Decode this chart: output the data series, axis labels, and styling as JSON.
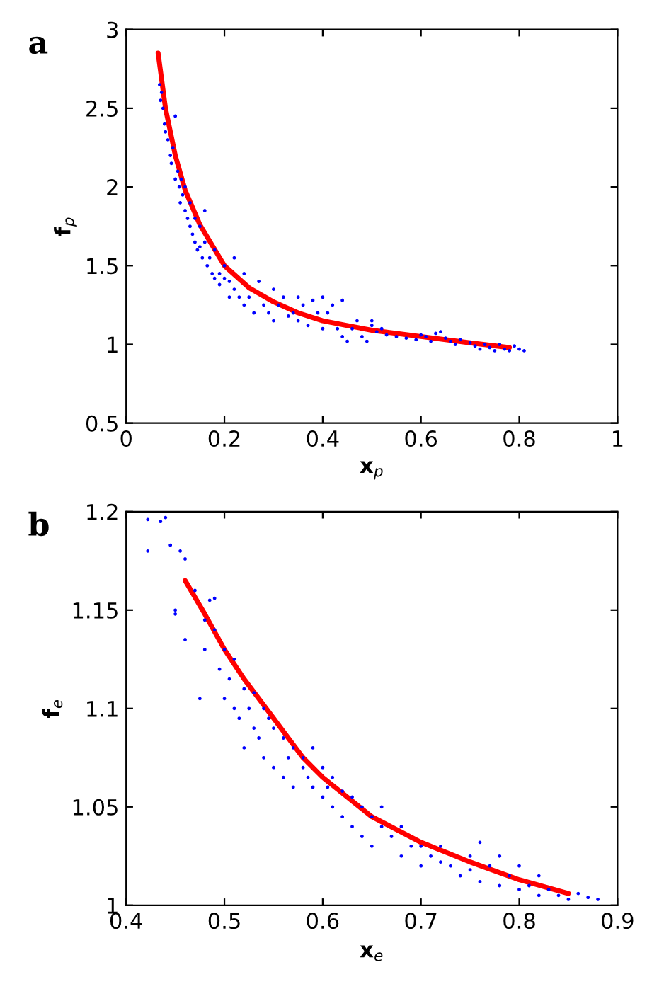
{
  "chart_data": [
    {
      "type": "scatter",
      "title": "a",
      "xlabel": "x$_{p}$",
      "ylabel": "f$_{p}$",
      "xlim": [
        0,
        1
      ],
      "ylim": [
        0.5,
        3
      ],
      "xticks": [
        0,
        0.2,
        0.4,
        0.6,
        0.8,
        1
      ],
      "yticks": [
        0.5,
        1,
        1.5,
        2,
        2.5,
        3
      ],
      "grid": false,
      "legend": false,
      "series": [
        {
          "color": "#0000ff",
          "marker": "circle",
          "x": [
            0.068,
            0.07,
            0.072,
            0.075,
            0.078,
            0.08,
            0.085,
            0.09,
            0.092,
            0.095,
            0.1,
            0.1,
            0.105,
            0.108,
            0.11,
            0.112,
            0.115,
            0.12,
            0.12,
            0.125,
            0.13,
            0.13,
            0.135,
            0.14,
            0.14,
            0.145,
            0.15,
            0.15,
            0.155,
            0.16,
            0.16,
            0.165,
            0.17,
            0.175,
            0.18,
            0.18,
            0.19,
            0.19,
            0.2,
            0.2,
            0.21,
            0.21,
            0.22,
            0.22,
            0.23,
            0.24,
            0.24,
            0.25,
            0.26,
            0.27,
            0.28,
            0.29,
            0.3,
            0.3,
            0.31,
            0.32,
            0.33,
            0.34,
            0.35,
            0.35,
            0.36,
            0.37,
            0.38,
            0.39,
            0.4,
            0.4,
            0.41,
            0.42,
            0.43,
            0.44,
            0.44,
            0.45,
            0.46,
            0.47,
            0.48,
            0.49,
            0.5,
            0.5,
            0.51,
            0.52,
            0.53,
            0.55,
            0.57,
            0.59,
            0.6,
            0.61,
            0.62,
            0.63,
            0.64,
            0.65,
            0.66,
            0.67,
            0.68,
            0.7,
            0.71,
            0.72,
            0.73,
            0.74,
            0.75,
            0.76,
            0.77,
            0.78,
            0.79,
            0.8,
            0.81
          ],
          "values": [
            2.65,
            2.55,
            2.6,
            2.5,
            2.4,
            2.35,
            2.3,
            2.2,
            2.15,
            2.25,
            2.05,
            2.45,
            2.1,
            2.0,
            1.9,
            2.05,
            1.95,
            1.85,
            2.0,
            1.8,
            1.75,
            1.9,
            1.7,
            1.8,
            1.65,
            1.6,
            1.75,
            1.62,
            1.55,
            1.85,
            1.65,
            1.5,
            1.55,
            1.45,
            1.42,
            1.6,
            1.45,
            1.38,
            1.5,
            1.42,
            1.4,
            1.3,
            1.35,
            1.55,
            1.3,
            1.25,
            1.45,
            1.3,
            1.2,
            1.4,
            1.25,
            1.2,
            1.15,
            1.35,
            1.25,
            1.3,
            1.18,
            1.2,
            1.3,
            1.15,
            1.25,
            1.12,
            1.28,
            1.2,
            1.1,
            1.3,
            1.2,
            1.25,
            1.1,
            1.05,
            1.28,
            1.02,
            1.1,
            1.15,
            1.05,
            1.02,
            1.12,
            1.15,
            1.08,
            1.1,
            1.06,
            1.05,
            1.04,
            1.03,
            1.06,
            1.05,
            1.02,
            1.07,
            1.08,
            1.04,
            1.02,
            1.0,
            1.03,
            1.01,
            0.99,
            0.97,
            1.0,
            0.98,
            0.96,
            1.0,
            0.97,
            0.96,
            0.99,
            0.97,
            0.96
          ]
        },
        {
          "type": "line",
          "color": "#ff0000",
          "marker": "none",
          "line_style": "solid",
          "x": [
            0.065,
            0.08,
            0.1,
            0.12,
            0.15,
            0.2,
            0.25,
            0.3,
            0.35,
            0.4,
            0.45,
            0.5,
            0.6,
            0.7,
            0.78
          ],
          "values": [
            2.85,
            2.5,
            2.2,
            1.98,
            1.76,
            1.5,
            1.36,
            1.27,
            1.2,
            1.15,
            1.12,
            1.09,
            1.05,
            1.01,
            0.98
          ]
        }
      ]
    },
    {
      "type": "scatter",
      "title": "b",
      "xlabel": "x$_{e}$",
      "ylabel": "f$_{e}$",
      "xlim": [
        0.4,
        0.9
      ],
      "ylim": [
        1,
        1.2
      ],
      "xticks": [
        0.4,
        0.5,
        0.6,
        0.7,
        0.8,
        0.9
      ],
      "yticks": [
        1,
        1.05,
        1.1,
        1.15,
        1.2
      ],
      "grid": false,
      "legend": false,
      "series": [
        {
          "color": "#0000ff",
          "marker": "circle",
          "x": [
            0.422,
            0.435,
            0.44,
            0.422,
            0.445,
            0.45,
            0.455,
            0.46,
            0.45,
            0.46,
            0.475,
            0.47,
            0.48,
            0.48,
            0.485,
            0.49,
            0.49,
            0.495,
            0.5,
            0.5,
            0.505,
            0.51,
            0.51,
            0.515,
            0.52,
            0.52,
            0.525,
            0.53,
            0.53,
            0.535,
            0.54,
            0.54,
            0.545,
            0.55,
            0.55,
            0.56,
            0.56,
            0.565,
            0.57,
            0.57,
            0.58,
            0.58,
            0.585,
            0.59,
            0.59,
            0.6,
            0.6,
            0.605,
            0.61,
            0.61,
            0.62,
            0.62,
            0.63,
            0.63,
            0.64,
            0.64,
            0.65,
            0.65,
            0.66,
            0.66,
            0.67,
            0.68,
            0.68,
            0.69,
            0.7,
            0.7,
            0.71,
            0.72,
            0.72,
            0.73,
            0.74,
            0.75,
            0.75,
            0.76,
            0.76,
            0.77,
            0.78,
            0.78,
            0.79,
            0.8,
            0.8,
            0.81,
            0.82,
            0.82,
            0.83,
            0.84,
            0.85,
            0.86,
            0.87,
            0.88
          ],
          "values": [
            1.196,
            1.195,
            1.197,
            1.18,
            1.183,
            1.15,
            1.18,
            1.176,
            1.148,
            1.135,
            1.105,
            1.16,
            1.145,
            1.13,
            1.155,
            1.14,
            1.156,
            1.12,
            1.13,
            1.105,
            1.115,
            1.1,
            1.125,
            1.095,
            1.08,
            1.11,
            1.1,
            1.09,
            1.108,
            1.085,
            1.075,
            1.1,
            1.095,
            1.07,
            1.09,
            1.065,
            1.085,
            1.075,
            1.06,
            1.08,
            1.07,
            1.075,
            1.065,
            1.06,
            1.08,
            1.055,
            1.07,
            1.06,
            1.05,
            1.065,
            1.045,
            1.058,
            1.04,
            1.055,
            1.035,
            1.05,
            1.045,
            1.03,
            1.04,
            1.05,
            1.035,
            1.025,
            1.04,
            1.03,
            1.03,
            1.02,
            1.025,
            1.022,
            1.03,
            1.02,
            1.015,
            1.018,
            1.025,
            1.012,
            1.032,
            1.02,
            1.01,
            1.025,
            1.015,
            1.008,
            1.02,
            1.01,
            1.005,
            1.015,
            1.008,
            1.005,
            1.003,
            1.006,
            1.004,
            1.003
          ]
        },
        {
          "type": "line",
          "color": "#ff0000",
          "marker": "none",
          "line_style": "solid",
          "x": [
            0.46,
            0.48,
            0.5,
            0.52,
            0.55,
            0.58,
            0.6,
            0.65,
            0.7,
            0.75,
            0.8,
            0.85
          ],
          "values": [
            1.165,
            1.148,
            1.13,
            1.115,
            1.095,
            1.075,
            1.065,
            1.045,
            1.032,
            1.022,
            1.013,
            1.006
          ]
        }
      ]
    }
  ]
}
